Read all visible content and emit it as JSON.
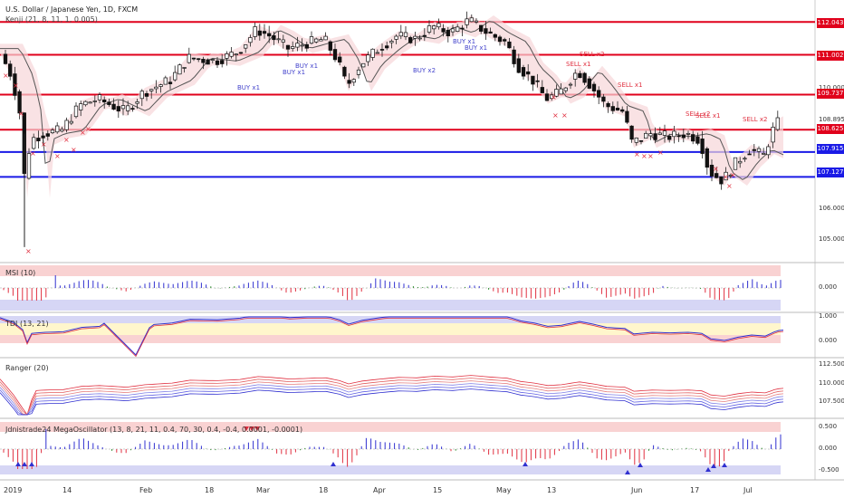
{
  "header": {
    "symbol_line": "U.S. Dollar / Japanese Yen, 1D, FXCM",
    "indicator_line": "Kenji (21, 8, 11, 1, 0.005)"
  },
  "price_axis": {
    "ticks": [
      "110.000",
      "108.895",
      "106.000",
      "105.000"
    ],
    "level_tags": [
      {
        "label": "112.043",
        "color": "#e0001b"
      },
      {
        "label": "111.002",
        "color": "#e0001b"
      },
      {
        "label": "109.737",
        "color": "#e0001b"
      },
      {
        "label": "108.625",
        "color": "#e0001b"
      },
      {
        "label": "107.915",
        "color": "#1a1ae6"
      },
      {
        "label": "107.127",
        "color": "#1a1ae6"
      }
    ]
  },
  "panels": {
    "msi": {
      "title": "MSI (10)",
      "ticks": [
        "0.000"
      ]
    },
    "tdi": {
      "title": "TDI (13, 21)",
      "ticks": [
        "1.000",
        "0.000"
      ]
    },
    "ranger": {
      "title": "Ranger (20)",
      "ticks": [
        "112.500",
        "110.000",
        "107.500"
      ]
    },
    "mega": {
      "title": "Jdnistrade24 MegaOscillator (13, 8, 21, 11, 0.4, 70, 30, 0.4, -0.4, 0.0001, -0.0001)",
      "ticks": [
        "0.500",
        "0.000",
        "-0.500"
      ]
    }
  },
  "x_axis": [
    "2019",
    "14",
    "Feb",
    "18",
    "Mar",
    "18",
    "Apr",
    "15",
    "May",
    "13",
    "Jun",
    "17",
    "Jul"
  ],
  "signals": [
    {
      "text": "BUY x1",
      "kind": "buy"
    },
    {
      "text": "BUY x1",
      "kind": "buy"
    },
    {
      "text": "BUY x1",
      "kind": "buy"
    },
    {
      "text": "BUY x2",
      "kind": "buy"
    },
    {
      "text": "BUY x1",
      "kind": "buy"
    },
    {
      "text": "BUY x1",
      "kind": "buy"
    },
    {
      "text": "SELL x2",
      "kind": "sell"
    },
    {
      "text": "SELL x1",
      "kind": "sell"
    },
    {
      "text": "SELL x1",
      "kind": "sell"
    },
    {
      "text": "SELL x2",
      "kind": "sell"
    },
    {
      "text": "SELL x1",
      "kind": "sell"
    },
    {
      "text": "SELL x2",
      "kind": "sell"
    }
  ],
  "colors": {
    "resistance": "#e0001b",
    "support": "#1a1ae6",
    "bull": "#ffffff",
    "bear": "#111111",
    "buy": "#4444cc",
    "sell": "#e03040"
  }
}
